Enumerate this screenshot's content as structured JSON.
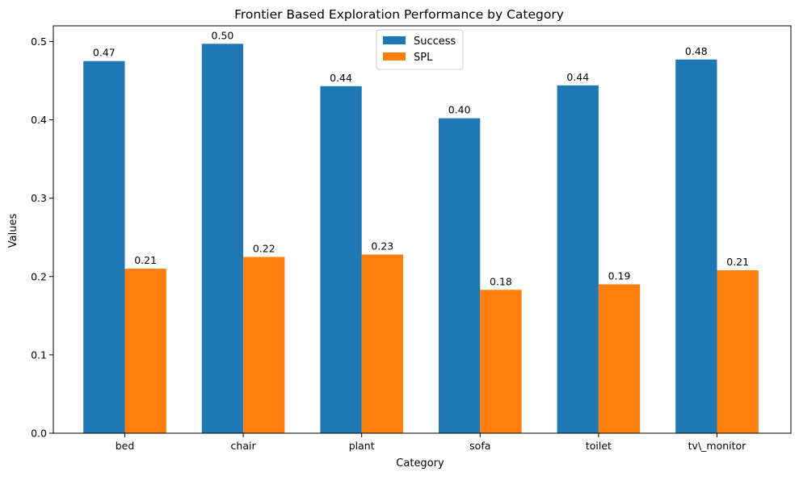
{
  "chart_data": {
    "type": "bar",
    "title": "Frontier Based Exploration Performance by Category",
    "xlabel": "Category",
    "ylabel": "Values",
    "categories": [
      "bed",
      "chair",
      "plant",
      "sofa",
      "toilet",
      "tv\\_monitor"
    ],
    "ylim": [
      0,
      0.52
    ],
    "yticks": [
      "0.0",
      "0.1",
      "0.2",
      "0.3",
      "0.4",
      "0.5"
    ],
    "series": [
      {
        "name": "Success",
        "color": "#1f77b4",
        "values": [
          0.475,
          0.497,
          0.443,
          0.402,
          0.444,
          0.477
        ],
        "labels": [
          "0.47",
          "0.50",
          "0.44",
          "0.40",
          "0.44",
          "0.48"
        ]
      },
      {
        "name": "SPL",
        "color": "#ff7f0e",
        "values": [
          0.21,
          0.225,
          0.228,
          0.183,
          0.19,
          0.208
        ],
        "labels": [
          "0.21",
          "0.22",
          "0.23",
          "0.18",
          "0.19",
          "0.21"
        ]
      }
    ],
    "grid": false,
    "legend_position": "top-center"
  }
}
